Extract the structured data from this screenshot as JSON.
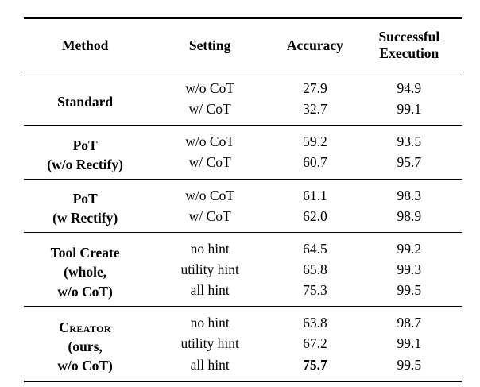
{
  "colors": {
    "background": "#ffffff",
    "text": "#000000",
    "rule": "#000000"
  },
  "table": {
    "headers": [
      "Method",
      "Setting",
      "Accuracy",
      "Successful\nExecution"
    ],
    "groups": [
      {
        "method_lines": [
          "Standard"
        ],
        "rows": [
          {
            "setting": "w/o CoT",
            "accuracy": "27.9",
            "execution": "94.9"
          },
          {
            "setting": "w/ CoT",
            "accuracy": "32.7",
            "execution": "99.1"
          }
        ]
      },
      {
        "method_lines": [
          "PoT",
          "(w/o Rectify)"
        ],
        "rows": [
          {
            "setting": "w/o CoT",
            "accuracy": "59.2",
            "execution": "93.5"
          },
          {
            "setting": "w/ CoT",
            "accuracy": "60.7",
            "execution": "95.7"
          }
        ]
      },
      {
        "method_lines": [
          "PoT",
          "(w Rectify)"
        ],
        "rows": [
          {
            "setting": "w/o CoT",
            "accuracy": "61.1",
            "execution": "98.3"
          },
          {
            "setting": "w/ CoT",
            "accuracy": "62.0",
            "execution": "98.9"
          }
        ]
      },
      {
        "method_lines": [
          "Tool Create",
          "(whole,",
          "w/o CoT)"
        ],
        "rows": [
          {
            "setting": "no hint",
            "accuracy": "64.5",
            "execution": "99.2"
          },
          {
            "setting": "utility hint",
            "accuracy": "65.8",
            "execution": "99.3"
          },
          {
            "setting": "all hint",
            "accuracy": "75.3",
            "execution": "99.5"
          }
        ]
      },
      {
        "method_lines": [
          "Creator",
          "(ours,",
          "w/o CoT)"
        ],
        "small_caps_first_line": true,
        "rows": [
          {
            "setting": "no hint",
            "accuracy": "63.8",
            "execution": "98.7"
          },
          {
            "setting": "utility hint",
            "accuracy": "67.2",
            "execution": "99.1"
          },
          {
            "setting": "all hint",
            "accuracy": "75.7",
            "accuracy_bold": true,
            "execution": "99.5"
          }
        ]
      }
    ]
  },
  "chart_data": {
    "type": "table",
    "columns": [
      "Method",
      "Setting",
      "Accuracy",
      "Successful Execution"
    ],
    "rows": [
      [
        "Standard",
        "w/o CoT",
        27.9,
        94.9
      ],
      [
        "Standard",
        "w/ CoT",
        32.7,
        99.1
      ],
      [
        "PoT (w/o Rectify)",
        "w/o CoT",
        59.2,
        93.5
      ],
      [
        "PoT (w/o Rectify)",
        "w/ CoT",
        60.7,
        95.7
      ],
      [
        "PoT (w Rectify)",
        "w/o CoT",
        61.1,
        98.3
      ],
      [
        "PoT (w Rectify)",
        "w/ CoT",
        62.0,
        98.9
      ],
      [
        "Tool Create (whole, w/o CoT)",
        "no hint",
        64.5,
        99.2
      ],
      [
        "Tool Create (whole, w/o CoT)",
        "utility hint",
        65.8,
        99.3
      ],
      [
        "Tool Create (whole, w/o CoT)",
        "all hint",
        75.3,
        99.5
      ],
      [
        "Creator (ours, w/o CoT)",
        "no hint",
        63.8,
        98.7
      ],
      [
        "Creator (ours, w/o CoT)",
        "utility hint",
        67.2,
        99.1
      ],
      [
        "Creator (ours, w/o CoT)",
        "all hint",
        75.7,
        99.5
      ]
    ],
    "emphasis": "Accuracy 75.7 (Creator, all hint) is bold"
  }
}
